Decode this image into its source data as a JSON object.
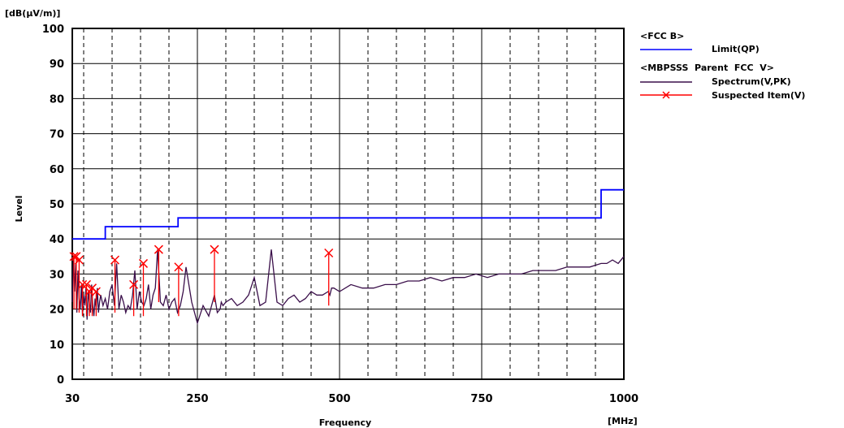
{
  "chart_data": {
    "type": "line",
    "ylabel": "Level",
    "yunit": "[dB(μV/m)]",
    "xlabel": "Frequency",
    "xunit": "[MHz]",
    "xlim": [
      30,
      1000
    ],
    "ylim": [
      0,
      100
    ],
    "x_ticks": [
      30,
      250,
      500,
      750,
      1000
    ],
    "y_ticks": [
      0,
      10,
      20,
      30,
      40,
      50,
      60,
      70,
      80,
      90,
      100
    ],
    "grid": true,
    "legend": {
      "position": "top-right",
      "headings": [
        "<FCC B>",
        "<MBPSSS  Parent  FCC  V>"
      ],
      "entries": {
        "limit": "Limit(QP)",
        "spectrum": "Spectrum(V,PK)",
        "suspected": "Suspected Item(V)"
      }
    },
    "series": [
      {
        "name": "Limit(QP)",
        "color": "#0000ff",
        "style": "step",
        "x": [
          30,
          88,
          88,
          216,
          216,
          960,
          960,
          1000
        ],
        "y": [
          40,
          40,
          43.5,
          43.5,
          46,
          46,
          54,
          54
        ]
      },
      {
        "name": "Spectrum(V,PK)",
        "color": "#3a0f4a",
        "style": "line",
        "x": [
          30,
          32,
          34,
          36,
          38,
          40,
          42,
          44,
          46,
          48,
          50,
          52,
          54,
          56,
          58,
          60,
          62,
          64,
          66,
          68,
          70,
          72,
          74,
          76,
          78,
          80,
          84,
          88,
          92,
          96,
          100,
          104,
          108,
          112,
          116,
          120,
          124,
          128,
          132,
          136,
          140,
          144,
          148,
          152,
          156,
          160,
          164,
          168,
          172,
          176,
          180,
          185,
          190,
          195,
          200,
          205,
          210,
          215,
          220,
          225,
          230,
          240,
          250,
          260,
          270,
          280,
          285,
          290,
          292,
          295,
          300,
          310,
          320,
          330,
          340,
          350,
          360,
          370,
          380,
          390,
          400,
          410,
          420,
          430,
          440,
          450,
          460,
          470,
          480,
          483,
          486,
          490,
          500,
          520,
          540,
          560,
          580,
          600,
          620,
          640,
          660,
          680,
          700,
          720,
          740,
          760,
          780,
          800,
          820,
          840,
          860,
          880,
          900,
          920,
          940,
          960,
          970,
          980,
          990,
          1000
        ],
        "y": [
          22,
          35,
          25,
          33,
          19,
          31,
          23,
          20,
          27,
          18,
          24,
          21,
          26,
          17,
          25,
          22,
          19,
          27,
          21,
          18,
          23,
          20,
          26,
          19,
          22,
          24,
          21,
          23,
          20,
          25,
          27,
          21,
          33,
          20,
          24,
          22,
          19,
          21,
          20,
          24,
          31,
          20,
          25,
          22,
          21,
          23,
          27,
          20,
          24,
          26,
          37,
          22,
          21,
          24,
          20,
          22,
          23,
          19,
          21,
          25,
          32,
          22,
          16,
          21,
          18,
          24,
          19,
          20,
          22,
          21,
          22,
          23,
          21,
          22,
          24,
          29,
          21,
          22,
          37,
          22,
          21,
          23,
          24,
          22,
          23,
          25,
          24,
          24,
          25,
          24,
          26,
          26,
          25,
          27,
          26,
          26,
          27,
          27,
          28,
          28,
          29,
          28,
          29,
          29,
          30,
          29,
          30,
          30,
          30,
          31,
          31,
          31,
          32,
          32,
          32,
          33,
          33,
          34,
          33,
          35
        ]
      },
      {
        "name": "Suspected Item(V)",
        "color": "#ff0000",
        "style": "markers",
        "x": [
          33,
          37,
          42,
          48,
          55,
          60,
          65,
          72,
          105,
          138,
          155,
          182,
          217,
          280,
          481
        ],
        "y": [
          35,
          35,
          34,
          27,
          27,
          25,
          26,
          25,
          34,
          27,
          33,
          37,
          32,
          37,
          36
        ]
      }
    ]
  }
}
